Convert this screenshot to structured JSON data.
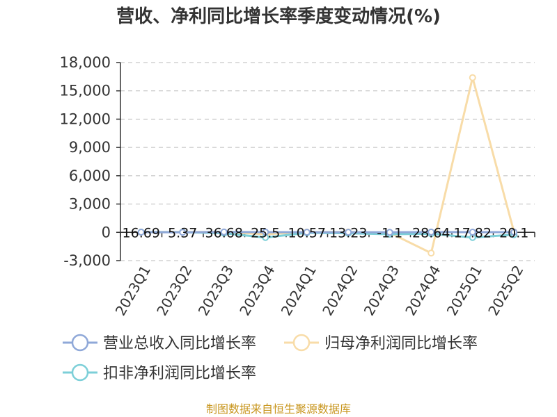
{
  "chart_data": {
    "type": "line",
    "title": "营收、净利同比增长率季度变动情况(%)",
    "categories": [
      "2023Q1",
      "2023Q2",
      "2023Q3",
      "2023Q4",
      "2024Q1",
      "2024Q2",
      "2024Q3",
      "2024Q4",
      "2025Q1",
      "2025Q2"
    ],
    "series": [
      {
        "name": "营业总收入同比增长率",
        "color": "#8fa8d8",
        "values": [
          16.69,
          5.37,
          36.68,
          25.5,
          10.57,
          13.23,
          -1.1,
          28.64,
          17.82,
          20.1
        ]
      },
      {
        "name": "归母净利润同比增长率",
        "color": "#f8dca8",
        "values": [
          20,
          40,
          30,
          -200,
          30,
          40,
          -50,
          -2200,
          16400,
          50
        ]
      },
      {
        "name": "扣非净利润同比增长率",
        "color": "#7ccfd8",
        "values": [
          30,
          20,
          -100,
          -550,
          -50,
          -100,
          -200,
          -150,
          -550,
          -250
        ]
      }
    ],
    "data_labels": [
      "16.69",
      "5.37",
      "36.68",
      "25.5",
      "10.57",
      "13.23",
      "-1.1",
      "28.64",
      "17.82",
      "20.1"
    ],
    "yticks": [
      "18,000",
      "15,000",
      "12,000",
      "9,000",
      "6,000",
      "3,000",
      "0",
      "-3,000"
    ],
    "ylim": [
      -3000,
      18000
    ],
    "grid": true,
    "legend_position": "bottom"
  },
  "source": "制图数据来自恒生聚源数据库"
}
